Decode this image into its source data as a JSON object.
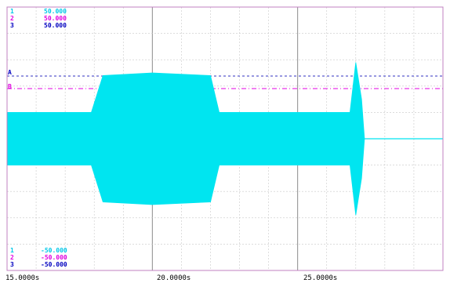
{
  "scope": {
    "top_readouts": [
      {
        "channel": "1",
        "value": "50.000",
        "color": "#00c8e8"
      },
      {
        "channel": "2",
        "value": "50.000",
        "color": "#e000e0"
      },
      {
        "channel": "3",
        "value": "50.000",
        "color": "#0000c0"
      }
    ],
    "bottom_readouts": [
      {
        "channel": "1",
        "value": "-50.000",
        "color": "#00c8e8"
      },
      {
        "channel": "2",
        "value": "-50.000",
        "color": "#e000e0"
      },
      {
        "channel": "3",
        "value": "-50.000",
        "color": "#0000c0"
      }
    ],
    "cursor_markers": [
      {
        "label": "A",
        "color": "#0000c0"
      },
      {
        "label": "B",
        "color": "#e000e0"
      }
    ],
    "time_labels": [
      "15.0000s",
      "20.0000s",
      "25.0000s"
    ],
    "colors": {
      "trace": "#00e5f0",
      "frame": "#c080c0",
      "grid_major": "#8a8a8a",
      "grid_minor": "#c8c8c8",
      "cursor_a": "#3030c0",
      "cursor_b": "#e000e0"
    }
  },
  "chart_data": {
    "type": "area",
    "title": "",
    "xlabel": "",
    "ylabel": "",
    "x_ticks": [
      "15.0000s",
      "20.0000s",
      "25.0000s"
    ],
    "series": [
      {
        "name": "1",
        "x": [
          15.0,
          17.9,
          18.3,
          20.0,
          22.0,
          22.3,
          24.0,
          26.8,
          27.0,
          27.2,
          27.3,
          28.0
        ],
        "upper": [
          10,
          10,
          24,
          25,
          24,
          10,
          10,
          10,
          29,
          15,
          0,
          0
        ],
        "lower": [
          -10,
          -10,
          -24,
          -25,
          -24,
          -10,
          -10,
          -10,
          -29,
          -15,
          0,
          0
        ]
      }
    ],
    "ylim": [
      -50,
      50
    ]
  }
}
